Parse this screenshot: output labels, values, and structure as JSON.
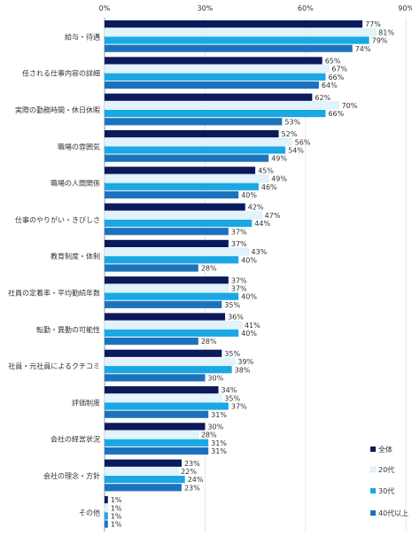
{
  "chart_data": {
    "type": "bar",
    "orientation": "horizontal",
    "xlim": [
      0,
      90
    ],
    "ticks": [
      0,
      30,
      60,
      90
    ],
    "tick_labels": [
      "0%",
      "30%",
      "60%",
      "90%"
    ],
    "grid": true,
    "legend_position": "bottom-right",
    "categories": [
      "給与・待遇",
      "任される仕事内容の詳細",
      "実際の勤務時間・休日休暇",
      "職場の雰囲気",
      "職場の人間関係",
      "仕事のやりがい・きびしさ",
      "教育制度・体制",
      "社員の定着率・平均勤続年数",
      "転勤・異動の可能性",
      "社員・元社員によるクチコミ",
      "評価制度",
      "会社の経営状況",
      "会社の理念・方針",
      "その他"
    ],
    "series": [
      {
        "name": "全体",
        "color": "#0b1a5c",
        "values": [
          77,
          65,
          62,
          52,
          45,
          42,
          37,
          37,
          36,
          35,
          34,
          30,
          23,
          1
        ]
      },
      {
        "name": "20代",
        "color": "#e3f3fc",
        "values": [
          81,
          67,
          70,
          56,
          49,
          47,
          43,
          37,
          41,
          39,
          35,
          28,
          22,
          1
        ]
      },
      {
        "name": "30代",
        "color": "#1aa7e4",
        "values": [
          79,
          66,
          66,
          54,
          46,
          44,
          40,
          40,
          40,
          38,
          37,
          31,
          24,
          1
        ]
      },
      {
        "name": "40代以上",
        "color": "#1d72bd",
        "values": [
          74,
          64,
          53,
          49,
          40,
          37,
          28,
          35,
          28,
          30,
          31,
          31,
          23,
          1
        ]
      }
    ],
    "value_suffix": "%"
  }
}
